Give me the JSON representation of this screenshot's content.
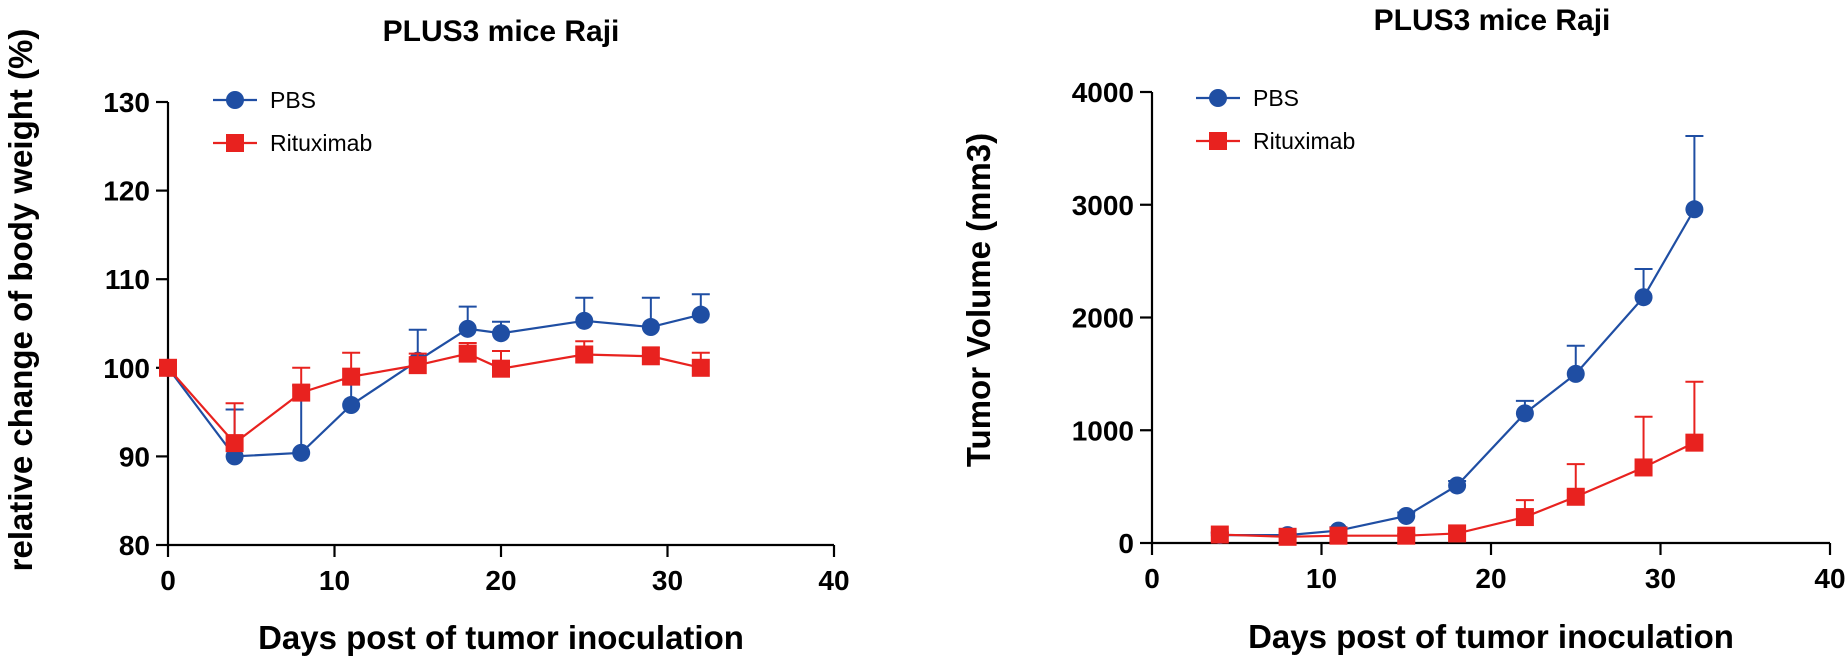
{
  "chart_data": [
    {
      "type": "line",
      "title": "PLUS3 mice Raji",
      "xlabel": "Days post of tumor inoculation",
      "ylabel": "relative change of body weight (%)",
      "xlim": [
        0,
        40
      ],
      "ylim": [
        80,
        130
      ],
      "xticks": [
        "0",
        "10",
        "20",
        "30",
        "40"
      ],
      "yticks": [
        "80",
        "90",
        "100",
        "110",
        "120",
        "130"
      ],
      "legend_position": "top-left",
      "grid": false,
      "series": [
        {
          "name": "PBS",
          "color": "#1f4ea3",
          "marker": "circle",
          "x": [
            0,
            4,
            8,
            11,
            15,
            18,
            20,
            25,
            29,
            32
          ],
          "y": [
            100,
            90,
            90.4,
            95.8,
            100.8,
            104.4,
            103.9,
            105.3,
            104.6,
            106
          ],
          "error": [
            0,
            5.3,
            7.6,
            2.8,
            3.5,
            2.5,
            1.3,
            2.6,
            3.3,
            2.3
          ]
        },
        {
          "name": "Rituximab",
          "color": "#e8221f",
          "marker": "square",
          "x": [
            0,
            4,
            8,
            11,
            15,
            18,
            20,
            25,
            29,
            32
          ],
          "y": [
            100,
            91.5,
            97.2,
            99,
            100.3,
            101.6,
            99.9,
            101.5,
            101.3,
            100
          ],
          "error": [
            0,
            4.5,
            2.8,
            2.7,
            1.3,
            1.2,
            2,
            1.5,
            1,
            1.7
          ]
        }
      ]
    },
    {
      "type": "line",
      "title": "PLUS3 mice Raji",
      "xlabel": "Days post of tumor inoculation",
      "ylabel": "Tumor Volume (mm3)",
      "xlim": [
        0,
        40
      ],
      "ylim": [
        0,
        4000
      ],
      "xticks": [
        "0",
        "10",
        "20",
        "30",
        "40"
      ],
      "yticks": [
        "0",
        "1000",
        "2000",
        "3000",
        "4000"
      ],
      "legend_position": "top-left",
      "grid": false,
      "series": [
        {
          "name": "PBS",
          "color": "#1f4ea3",
          "marker": "circle",
          "x": [
            4,
            8,
            11,
            15,
            18,
            22,
            25,
            29,
            32
          ],
          "y": [
            70,
            70,
            110,
            240,
            510,
            1150,
            1500,
            2180,
            2960
          ],
          "error": [
            20,
            20,
            30,
            30,
            40,
            110,
            250,
            250,
            650
          ]
        },
        {
          "name": "Rituximab",
          "color": "#e8221f",
          "marker": "square",
          "x": [
            4,
            8,
            11,
            15,
            18,
            22,
            25,
            29,
            32
          ],
          "y": [
            75,
            55,
            65,
            65,
            85,
            230,
            410,
            670,
            890
          ],
          "error": [
            20,
            15,
            15,
            15,
            25,
            150,
            290,
            450,
            540
          ]
        }
      ]
    }
  ]
}
